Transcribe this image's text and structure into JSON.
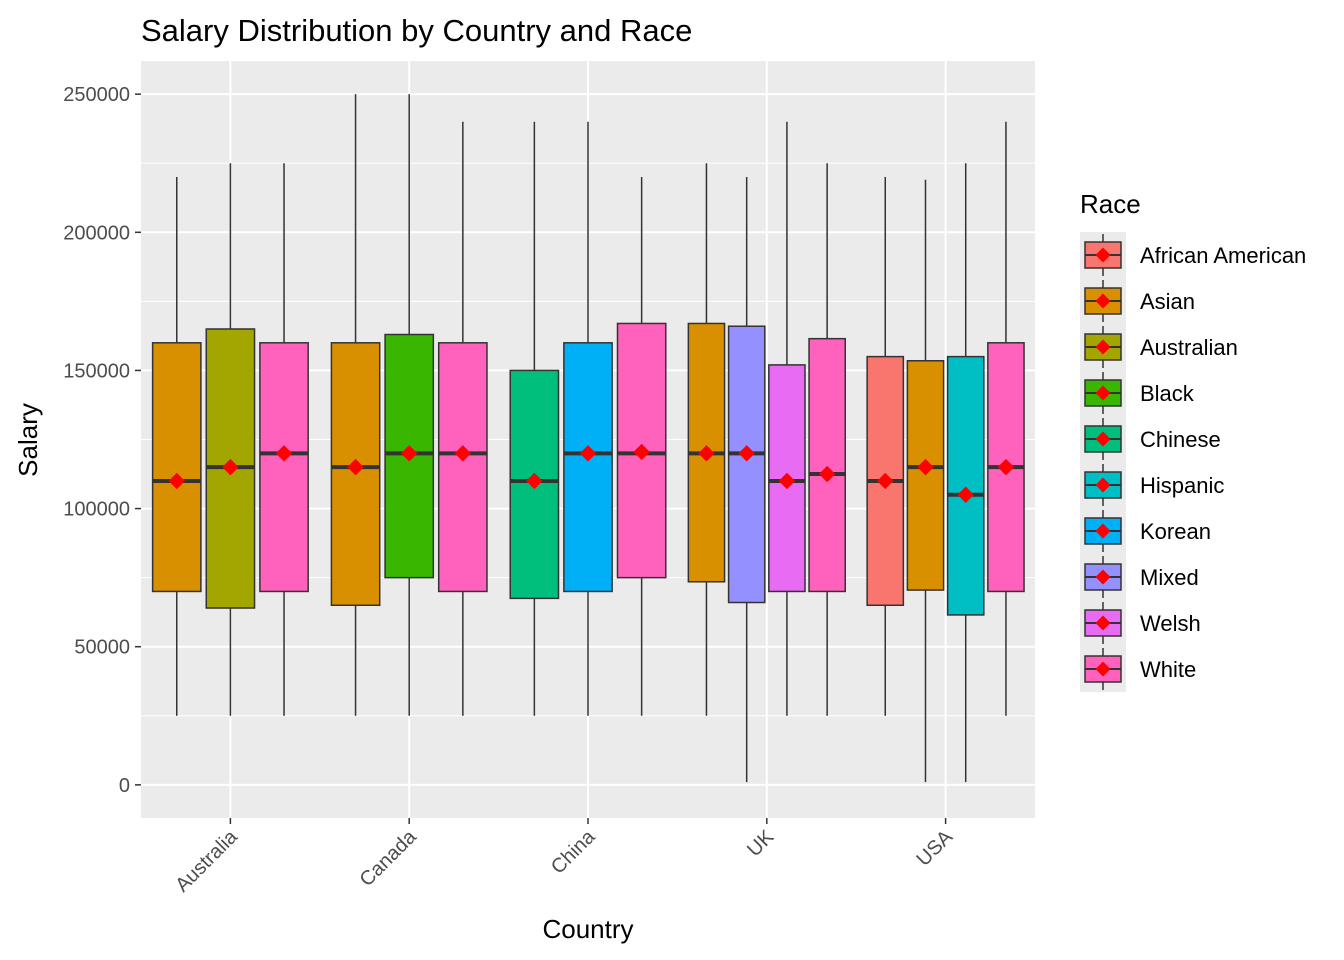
{
  "chart_data": {
    "type": "boxplot",
    "title": "Salary Distribution by Country and Race",
    "xlabel": "Country",
    "ylabel": "Salary",
    "ylim": [
      -12000,
      262000
    ],
    "yticks": [
      0,
      50000,
      100000,
      150000,
      200000,
      250000
    ],
    "ytick_labels": [
      "0",
      "50000",
      "100000",
      "150000",
      "200000",
      "250000"
    ],
    "categories": [
      "Australia",
      "Canada",
      "China",
      "UK",
      "USA"
    ],
    "legend_title": "Race",
    "legend_position": "right",
    "grid": true,
    "races": [
      {
        "name": "African American",
        "color": "#F8766D"
      },
      {
        "name": "Asian",
        "color": "#D89000"
      },
      {
        "name": "Australian",
        "color": "#A3A500"
      },
      {
        "name": "Black",
        "color": "#39B600"
      },
      {
        "name": "Chinese",
        "color": "#00BF7D"
      },
      {
        "name": "Hispanic",
        "color": "#00BFC4"
      },
      {
        "name": "Korean",
        "color": "#00B0F6"
      },
      {
        "name": "Mixed",
        "color": "#9590FF"
      },
      {
        "name": "Welsh",
        "color": "#E76BF3"
      },
      {
        "name": "White",
        "color": "#FF62BC"
      }
    ],
    "mean_marker_color": "#FF0000",
    "boxes": [
      {
        "country": "Australia",
        "race": "Asian",
        "min": 25000,
        "q1": 70000,
        "median": 110000,
        "q3": 160000,
        "max": 220000,
        "mean": 110000
      },
      {
        "country": "Australia",
        "race": "Australian",
        "min": 25000,
        "q1": 64000,
        "median": 115000,
        "q3": 165000,
        "max": 225000,
        "mean": 115000
      },
      {
        "country": "Australia",
        "race": "White",
        "min": 25000,
        "q1": 70000,
        "median": 120000,
        "q3": 160000,
        "max": 225000,
        "mean": 120000
      },
      {
        "country": "Canada",
        "race": "Asian",
        "min": 25000,
        "q1": 65000,
        "median": 115000,
        "q3": 160000,
        "max": 250000,
        "mean": 115000
      },
      {
        "country": "Canada",
        "race": "Black",
        "min": 25000,
        "q1": 75000,
        "median": 120000,
        "q3": 163000,
        "max": 250000,
        "mean": 120000
      },
      {
        "country": "Canada",
        "race": "White",
        "min": 25000,
        "q1": 70000,
        "median": 120000,
        "q3": 160000,
        "max": 240000,
        "mean": 120000
      },
      {
        "country": "China",
        "race": "Chinese",
        "min": 25000,
        "q1": 67500,
        "median": 110000,
        "q3": 150000,
        "max": 240000,
        "mean": 110000
      },
      {
        "country": "China",
        "race": "Korean",
        "min": 25000,
        "q1": 70000,
        "median": 120000,
        "q3": 160000,
        "max": 240000,
        "mean": 120000
      },
      {
        "country": "China",
        "race": "White",
        "min": 25000,
        "q1": 75000,
        "median": 120000,
        "q3": 167000,
        "max": 220000,
        "mean": 120500
      },
      {
        "country": "UK",
        "race": "Asian",
        "min": 25000,
        "q1": 73500,
        "median": 120000,
        "q3": 167000,
        "max": 225000,
        "mean": 120000
      },
      {
        "country": "UK",
        "race": "Mixed",
        "min": 1000,
        "q1": 66000,
        "median": 120000,
        "q3": 166000,
        "max": 220000,
        "mean": 120000
      },
      {
        "country": "UK",
        "race": "Welsh",
        "min": 25000,
        "q1": 70000,
        "median": 110000,
        "q3": 152000,
        "max": 240000,
        "mean": 110000
      },
      {
        "country": "UK",
        "race": "White",
        "min": 25000,
        "q1": 70000,
        "median": 112500,
        "q3": 161500,
        "max": 225000,
        "mean": 112500
      },
      {
        "country": "USA",
        "race": "African American",
        "min": 25000,
        "q1": 65000,
        "median": 110000,
        "q3": 155000,
        "max": 220000,
        "mean": 110000
      },
      {
        "country": "USA",
        "race": "Asian",
        "min": 1000,
        "q1": 70500,
        "median": 115000,
        "q3": 153500,
        "max": 219000,
        "mean": 115000
      },
      {
        "country": "USA",
        "race": "Hispanic",
        "min": 1000,
        "q1": 61500,
        "median": 105000,
        "q3": 155000,
        "max": 225000,
        "mean": 105000
      },
      {
        "country": "USA",
        "race": "White",
        "min": 25000,
        "q1": 70000,
        "median": 115000,
        "q3": 160000,
        "max": 240000,
        "mean": 115000
      }
    ]
  }
}
